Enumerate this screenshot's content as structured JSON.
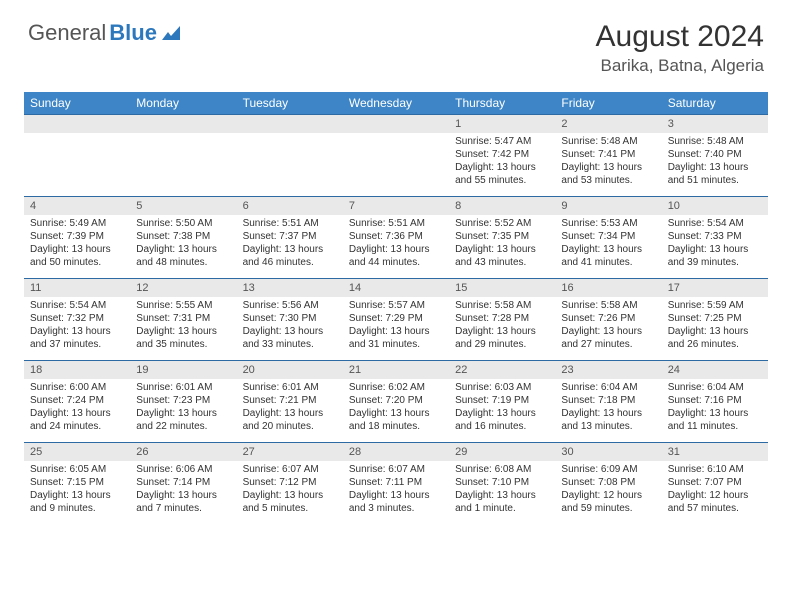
{
  "logo": {
    "text1": "General",
    "text2": "Blue"
  },
  "title": "August 2024",
  "location": "Barika, Batna, Algeria",
  "colors": {
    "header_bg": "#3d85c6",
    "header_fg": "#ffffff",
    "daynum_bg": "#e9e9e9",
    "border": "#2d6aa3",
    "logo_accent": "#2d78bd",
    "text": "#333333"
  },
  "weekdays": [
    "Sunday",
    "Monday",
    "Tuesday",
    "Wednesday",
    "Thursday",
    "Friday",
    "Saturday"
  ],
  "weeks": [
    [
      {
        "n": "",
        "sr": "",
        "ss": "",
        "dl": ""
      },
      {
        "n": "",
        "sr": "",
        "ss": "",
        "dl": ""
      },
      {
        "n": "",
        "sr": "",
        "ss": "",
        "dl": ""
      },
      {
        "n": "",
        "sr": "",
        "ss": "",
        "dl": ""
      },
      {
        "n": "1",
        "sr": "Sunrise: 5:47 AM",
        "ss": "Sunset: 7:42 PM",
        "dl": "Daylight: 13 hours and 55 minutes."
      },
      {
        "n": "2",
        "sr": "Sunrise: 5:48 AM",
        "ss": "Sunset: 7:41 PM",
        "dl": "Daylight: 13 hours and 53 minutes."
      },
      {
        "n": "3",
        "sr": "Sunrise: 5:48 AM",
        "ss": "Sunset: 7:40 PM",
        "dl": "Daylight: 13 hours and 51 minutes."
      }
    ],
    [
      {
        "n": "4",
        "sr": "Sunrise: 5:49 AM",
        "ss": "Sunset: 7:39 PM",
        "dl": "Daylight: 13 hours and 50 minutes."
      },
      {
        "n": "5",
        "sr": "Sunrise: 5:50 AM",
        "ss": "Sunset: 7:38 PM",
        "dl": "Daylight: 13 hours and 48 minutes."
      },
      {
        "n": "6",
        "sr": "Sunrise: 5:51 AM",
        "ss": "Sunset: 7:37 PM",
        "dl": "Daylight: 13 hours and 46 minutes."
      },
      {
        "n": "7",
        "sr": "Sunrise: 5:51 AM",
        "ss": "Sunset: 7:36 PM",
        "dl": "Daylight: 13 hours and 44 minutes."
      },
      {
        "n": "8",
        "sr": "Sunrise: 5:52 AM",
        "ss": "Sunset: 7:35 PM",
        "dl": "Daylight: 13 hours and 43 minutes."
      },
      {
        "n": "9",
        "sr": "Sunrise: 5:53 AM",
        "ss": "Sunset: 7:34 PM",
        "dl": "Daylight: 13 hours and 41 minutes."
      },
      {
        "n": "10",
        "sr": "Sunrise: 5:54 AM",
        "ss": "Sunset: 7:33 PM",
        "dl": "Daylight: 13 hours and 39 minutes."
      }
    ],
    [
      {
        "n": "11",
        "sr": "Sunrise: 5:54 AM",
        "ss": "Sunset: 7:32 PM",
        "dl": "Daylight: 13 hours and 37 minutes."
      },
      {
        "n": "12",
        "sr": "Sunrise: 5:55 AM",
        "ss": "Sunset: 7:31 PM",
        "dl": "Daylight: 13 hours and 35 minutes."
      },
      {
        "n": "13",
        "sr": "Sunrise: 5:56 AM",
        "ss": "Sunset: 7:30 PM",
        "dl": "Daylight: 13 hours and 33 minutes."
      },
      {
        "n": "14",
        "sr": "Sunrise: 5:57 AM",
        "ss": "Sunset: 7:29 PM",
        "dl": "Daylight: 13 hours and 31 minutes."
      },
      {
        "n": "15",
        "sr": "Sunrise: 5:58 AM",
        "ss": "Sunset: 7:28 PM",
        "dl": "Daylight: 13 hours and 29 minutes."
      },
      {
        "n": "16",
        "sr": "Sunrise: 5:58 AM",
        "ss": "Sunset: 7:26 PM",
        "dl": "Daylight: 13 hours and 27 minutes."
      },
      {
        "n": "17",
        "sr": "Sunrise: 5:59 AM",
        "ss": "Sunset: 7:25 PM",
        "dl": "Daylight: 13 hours and 26 minutes."
      }
    ],
    [
      {
        "n": "18",
        "sr": "Sunrise: 6:00 AM",
        "ss": "Sunset: 7:24 PM",
        "dl": "Daylight: 13 hours and 24 minutes."
      },
      {
        "n": "19",
        "sr": "Sunrise: 6:01 AM",
        "ss": "Sunset: 7:23 PM",
        "dl": "Daylight: 13 hours and 22 minutes."
      },
      {
        "n": "20",
        "sr": "Sunrise: 6:01 AM",
        "ss": "Sunset: 7:21 PM",
        "dl": "Daylight: 13 hours and 20 minutes."
      },
      {
        "n": "21",
        "sr": "Sunrise: 6:02 AM",
        "ss": "Sunset: 7:20 PM",
        "dl": "Daylight: 13 hours and 18 minutes."
      },
      {
        "n": "22",
        "sr": "Sunrise: 6:03 AM",
        "ss": "Sunset: 7:19 PM",
        "dl": "Daylight: 13 hours and 16 minutes."
      },
      {
        "n": "23",
        "sr": "Sunrise: 6:04 AM",
        "ss": "Sunset: 7:18 PM",
        "dl": "Daylight: 13 hours and 13 minutes."
      },
      {
        "n": "24",
        "sr": "Sunrise: 6:04 AM",
        "ss": "Sunset: 7:16 PM",
        "dl": "Daylight: 13 hours and 11 minutes."
      }
    ],
    [
      {
        "n": "25",
        "sr": "Sunrise: 6:05 AM",
        "ss": "Sunset: 7:15 PM",
        "dl": "Daylight: 13 hours and 9 minutes."
      },
      {
        "n": "26",
        "sr": "Sunrise: 6:06 AM",
        "ss": "Sunset: 7:14 PM",
        "dl": "Daylight: 13 hours and 7 minutes."
      },
      {
        "n": "27",
        "sr": "Sunrise: 6:07 AM",
        "ss": "Sunset: 7:12 PM",
        "dl": "Daylight: 13 hours and 5 minutes."
      },
      {
        "n": "28",
        "sr": "Sunrise: 6:07 AM",
        "ss": "Sunset: 7:11 PM",
        "dl": "Daylight: 13 hours and 3 minutes."
      },
      {
        "n": "29",
        "sr": "Sunrise: 6:08 AM",
        "ss": "Sunset: 7:10 PM",
        "dl": "Daylight: 13 hours and 1 minute."
      },
      {
        "n": "30",
        "sr": "Sunrise: 6:09 AM",
        "ss": "Sunset: 7:08 PM",
        "dl": "Daylight: 12 hours and 59 minutes."
      },
      {
        "n": "31",
        "sr": "Sunrise: 6:10 AM",
        "ss": "Sunset: 7:07 PM",
        "dl": "Daylight: 12 hours and 57 minutes."
      }
    ]
  ]
}
